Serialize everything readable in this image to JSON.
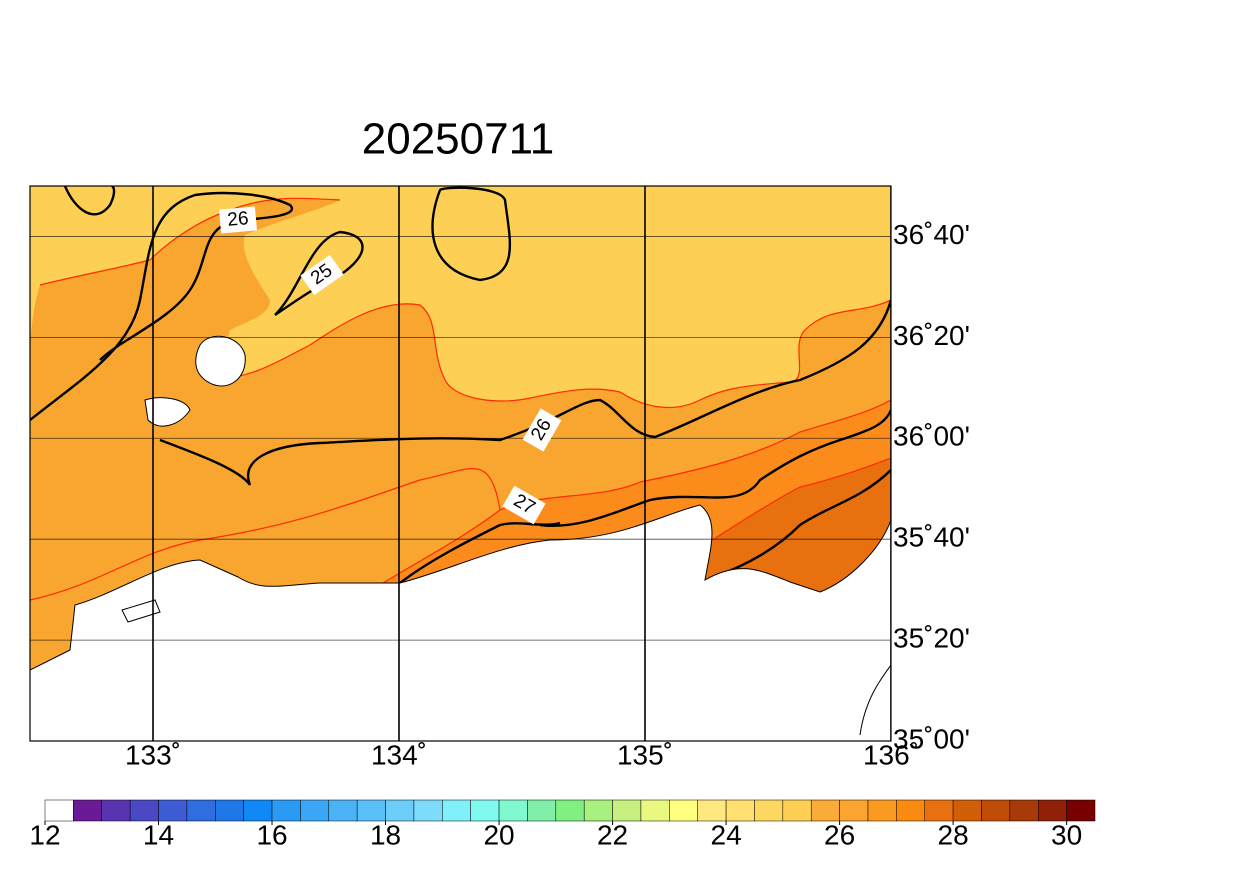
{
  "title": "20250711",
  "longitude": {
    "lim": [
      132.5,
      136
    ],
    "ticks": [
      {
        "value": 133,
        "label": "133˚"
      },
      {
        "value": 134,
        "label": "134˚"
      },
      {
        "value": 135,
        "label": "135˚"
      },
      {
        "value": 136,
        "label": "136˚"
      }
    ]
  },
  "latitude": {
    "lim": [
      35,
      36.8333
    ],
    "ticks": [
      {
        "value": 35,
        "label": "35˚00'"
      },
      {
        "value": 35.3333,
        "label": "35˚20'"
      },
      {
        "value": 35.6667,
        "label": "35˚40'"
      },
      {
        "value": 36,
        "label": "36˚00'"
      },
      {
        "value": 36.3333,
        "label": "36˚20'"
      },
      {
        "value": 36.6667,
        "label": "36˚40'"
      }
    ]
  },
  "contour_labels": [
    "26",
    "25",
    "26",
    "27"
  ],
  "colorbar": {
    "lim": [
      12,
      30.5
    ],
    "step": 0.5,
    "ticks": [
      12,
      14,
      16,
      18,
      20,
      22,
      24,
      26,
      28,
      30
    ],
    "colors": [
      "#ffffff",
      "#6a1a96",
      "#5a34b0",
      "#4a48c4",
      "#3d5cd6",
      "#2e6ee0",
      "#1f78e8",
      "#1088f5",
      "#2b9af5",
      "#3aa6f5",
      "#4ab2f5",
      "#5cc0f8",
      "#6ccef8",
      "#7ddcfa",
      "#80f0fa",
      "#80faee",
      "#80f8d0",
      "#80f0a8",
      "#80f080",
      "#a8f080",
      "#c8f080",
      "#e8f880",
      "#ffff80",
      "#ffe880",
      "#ffe070",
      "#fdd860",
      "#fdd055",
      "#f9ac38",
      "#fba530",
      "#fb9a20",
      "#fb8a10",
      "#e87010",
      "#d05f08",
      "#bf4d08",
      "#a83a08",
      "#902008",
      "#780000"
    ]
  }
}
